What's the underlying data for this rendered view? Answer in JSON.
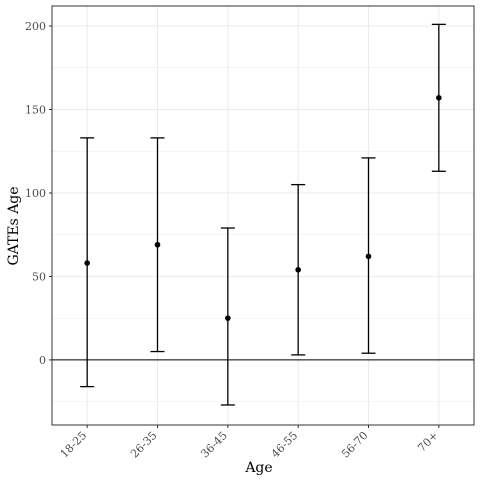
{
  "chart_data": {
    "type": "scatter",
    "title": "",
    "xlabel": "Age",
    "ylabel": "GATEs Age",
    "categories": [
      "18-25",
      "26-35",
      "36-45",
      "46-55",
      "56-70",
      "70+"
    ],
    "estimate": [
      58,
      69,
      25,
      54,
      62,
      157
    ],
    "lower": [
      -16,
      5,
      -27,
      3,
      4,
      113
    ],
    "upper": [
      133,
      133,
      79,
      105,
      121,
      201
    ],
    "ylim": [
      -39,
      212
    ],
    "yticks": [
      0,
      50,
      100,
      150,
      200
    ],
    "reference_line": 0,
    "grid": true,
    "legend": "none",
    "colors": {
      "background": "#ffffff",
      "grid": "#ebebeb",
      "border": "#333333",
      "marks": "#000000",
      "text": "#4d4d4d",
      "title": "#000000"
    }
  }
}
